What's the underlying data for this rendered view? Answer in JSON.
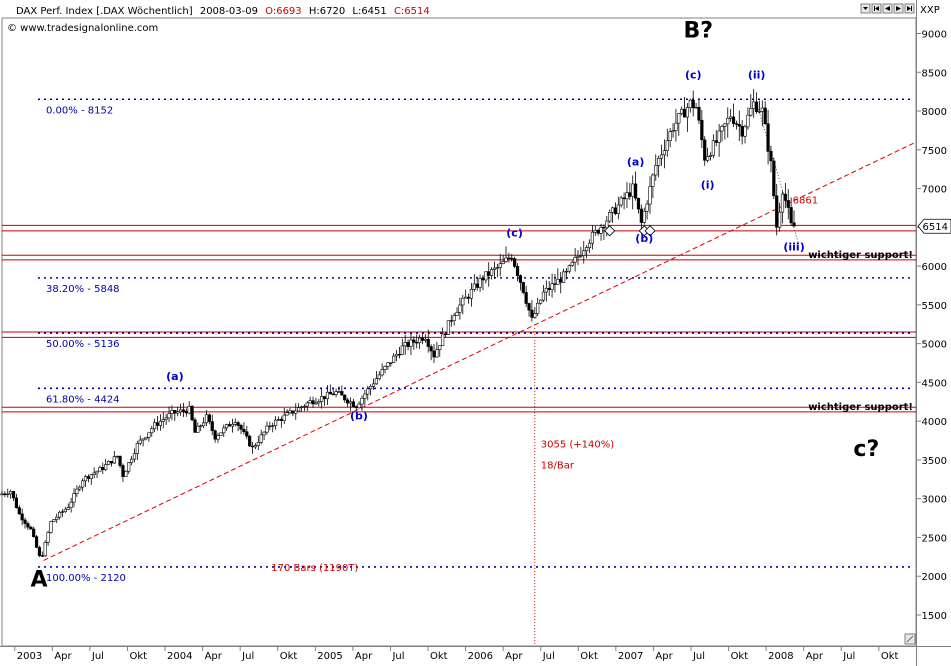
{
  "header": {
    "symbol_text": "DAX Perf. Index [.DAX  Wöchentlich]",
    "date": "2008-03-09",
    "open": "O:6693",
    "high": "H:6720",
    "low": "L:6451",
    "close": "C:6514",
    "copyright": "© www.tradesignalonline.com",
    "currency_label": "XXP"
  },
  "colors": {
    "open": "#cc0000",
    "close": "#cc0000",
    "fib_line": "#0000aa",
    "support_band": "#cc0000",
    "trendline": "#dd0000",
    "wave_label": "#0000cc",
    "annotation": "#cc0000"
  },
  "chart_data": {
    "type": "line",
    "title": "DAX Perf. Index [.DAX  Wöchentlich]",
    "x_ticks": [
      "2003",
      "Apr",
      "Jul",
      "Okt",
      "2004",
      "Apr",
      "Jul",
      "Okt",
      "2005",
      "Apr",
      "Jul",
      "Okt",
      "2006",
      "Apr",
      "Jul",
      "Okt",
      "2007",
      "Apr",
      "Jul",
      "Okt",
      "2008",
      "Apr",
      "Jul",
      "Okt"
    ],
    "x_tick_years": [
      2003.0,
      2003.25,
      2003.5,
      2003.75,
      2004.0,
      2004.25,
      2004.5,
      2004.75,
      2005.0,
      2005.25,
      2005.5,
      2005.75,
      2006.0,
      2006.25,
      2006.5,
      2006.75,
      2007.0,
      2007.25,
      2007.5,
      2007.75,
      2008.0,
      2008.25,
      2008.5,
      2008.75
    ],
    "xlim": [
      "2002-12-01",
      "2008-12-31"
    ],
    "y_ticks": [
      1500,
      2000,
      2500,
      3000,
      3500,
      4000,
      4500,
      5000,
      5500,
      6000,
      6500,
      7000,
      7500,
      8000,
      8500,
      9000
    ],
    "ylim": [
      1100,
      9200
    ],
    "last_price": "6514",
    "price_path": [
      {
        "x": "2002-12-01",
        "y": 3050
      },
      {
        "x": "2002-12-29",
        "y": 3100
      },
      {
        "x": "2003-01-19",
        "y": 2800
      },
      {
        "x": "2003-02-16",
        "y": 2600
      },
      {
        "x": "2003-03-12",
        "y": 2203
      },
      {
        "x": "2003-04-06",
        "y": 2700
      },
      {
        "x": "2003-05-18",
        "y": 2900
      },
      {
        "x": "2003-06-22",
        "y": 3250
      },
      {
        "x": "2003-08-10",
        "y": 3400
      },
      {
        "x": "2003-09-14",
        "y": 3550
      },
      {
        "x": "2003-09-28",
        "y": 3300
      },
      {
        "x": "2003-11-02",
        "y": 3700
      },
      {
        "x": "2003-12-14",
        "y": 3950
      },
      {
        "x": "2004-01-25",
        "y": 4100
      },
      {
        "x": "2004-03-07",
        "y": 4150
      },
      {
        "x": "2004-03-21",
        "y": 3850
      },
      {
        "x": "2004-04-18",
        "y": 4050
      },
      {
        "x": "2004-05-09",
        "y": 3800
      },
      {
        "x": "2004-06-27",
        "y": 4020
      },
      {
        "x": "2004-08-08",
        "y": 3650
      },
      {
        "x": "2004-09-19",
        "y": 3950
      },
      {
        "x": "2004-11-07",
        "y": 4100
      },
      {
        "x": "2004-12-26",
        "y": 4250
      },
      {
        "x": "2005-02-27",
        "y": 4370
      },
      {
        "x": "2005-04-17",
        "y": 4200
      },
      {
        "x": "2005-06-05",
        "y": 4550
      },
      {
        "x": "2005-08-07",
        "y": 4950
      },
      {
        "x": "2005-10-02",
        "y": 5100
      },
      {
        "x": "2005-10-23",
        "y": 4850
      },
      {
        "x": "2005-12-11",
        "y": 5400
      },
      {
        "x": "2006-02-19",
        "y": 5850
      },
      {
        "x": "2006-04-02",
        "y": 6000
      },
      {
        "x": "2006-04-30",
        "y": 6140
      },
      {
        "x": "2006-05-28",
        "y": 5700
      },
      {
        "x": "2006-06-18",
        "y": 5300
      },
      {
        "x": "2006-07-16",
        "y": 5650
      },
      {
        "x": "2006-09-10",
        "y": 5900
      },
      {
        "x": "2006-10-29",
        "y": 6300
      },
      {
        "x": "2006-12-17",
        "y": 6600
      },
      {
        "x": "2007-02-18",
        "y": 7000
      },
      {
        "x": "2007-03-11",
        "y": 6550
      },
      {
        "x": "2007-04-15",
        "y": 7300
      },
      {
        "x": "2007-05-27",
        "y": 7800
      },
      {
        "x": "2007-07-08",
        "y": 8100
      },
      {
        "x": "2007-07-22",
        "y": 8050
      },
      {
        "x": "2007-08-12",
        "y": 7400
      },
      {
        "x": "2007-09-09",
        "y": 7600
      },
      {
        "x": "2007-10-14",
        "y": 7950
      },
      {
        "x": "2007-11-11",
        "y": 7750
      },
      {
        "x": "2007-12-09",
        "y": 8100
      },
      {
        "x": "2007-12-30",
        "y": 8000
      },
      {
        "x": "2008-01-20",
        "y": 7300
      },
      {
        "x": "2008-02-03",
        "y": 6500
      },
      {
        "x": "2008-02-17",
        "y": 7000
      },
      {
        "x": "2008-03-02",
        "y": 6693
      },
      {
        "x": "2008-03-09",
        "y": 6514
      }
    ],
    "fib_levels": [
      {
        "label": "0.00% - 8152",
        "value": 8152
      },
      {
        "label": "38.20% - 5848",
        "value": 5848
      },
      {
        "label": "50.00% - 5136",
        "value": 5136
      },
      {
        "label": "61.80% - 4424",
        "value": 4424
      },
      {
        "label": "100.00% - 2120",
        "value": 2120
      }
    ],
    "support_bands": [
      {
        "upper": 6525,
        "lower": 6455
      },
      {
        "upper": 6140,
        "lower": 6080
      },
      {
        "upper": 5150,
        "lower": 5080
      },
      {
        "upper": 4180,
        "lower": 4120
      }
    ],
    "trendline": [
      {
        "x": "2003-03-12",
        "y": 2203
      },
      {
        "x": "2008-12-31",
        "y": 7600
      }
    ],
    "projection_line": [
      {
        "x": "2007-12-09",
        "y": 8100
      },
      {
        "x": "2008-03-20",
        "y": 6290
      }
    ],
    "vertical_marker": {
      "x": "2006-06-18",
      "y_from": 5200
    },
    "support_notes": [
      {
        "text": "wichtiger support!",
        "value": 6080
      },
      {
        "text": "wichtiger support!",
        "value": 4120
      }
    ],
    "measure_notes": [
      {
        "text": "3055 (+140%)",
        "x": "2006-06-18",
        "y": 3710
      },
      {
        "text": "18/Bar",
        "x": "2006-06-18",
        "y": 3440
      },
      {
        "text": "170 Bars (1190T)",
        "x": "2004-09-01",
        "y": 2120
      },
      {
        "text": "6861",
        "x": "2008-02-20",
        "y": 6861
      }
    ],
    "wave_labels": [
      {
        "text": "(a)",
        "x": "2004-01-25",
        "y": 4530
      },
      {
        "text": "(b)",
        "x": "2005-04-17",
        "y": 4020
      },
      {
        "text": "(c)",
        "x": "2006-04-30",
        "y": 6380
      },
      {
        "text": "(a)",
        "x": "2007-02-18",
        "y": 7300
      },
      {
        "text": "(b)",
        "x": "2007-03-11",
        "y": 6310
      },
      {
        "text": "(c)",
        "x": "2007-07-08",
        "y": 8420
      },
      {
        "text": "(i)",
        "x": "2007-08-12",
        "y": 7000
      },
      {
        "text": "(ii)",
        "x": "2007-12-09",
        "y": 8420
      },
      {
        "text": "(iii)",
        "x": "2008-03-09",
        "y": 6200
      }
    ],
    "big_labels": [
      {
        "text": "A",
        "x": "2003-03-01",
        "y": 1870
      },
      {
        "text": "B?",
        "x": "2007-07-20",
        "y": 8950
      },
      {
        "text": "c?",
        "x": "2008-09-01",
        "y": 3550
      }
    ]
  }
}
